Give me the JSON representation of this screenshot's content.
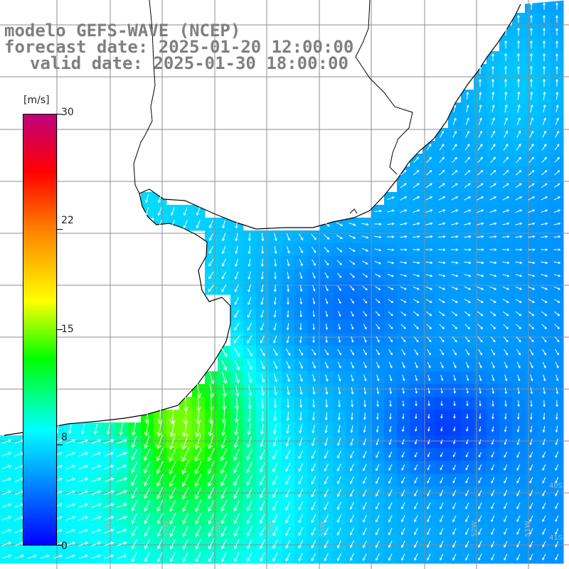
{
  "title": {
    "line1": "modelo GEFS-WAVE (NCEP)",
    "line2": "forecast date: 2025-01-20 12:00:00",
    "line3": "valid date: 2025-01-30 18:00:00"
  },
  "colorbar": {
    "unit": "[m/s]",
    "min": 0,
    "max": 30,
    "tick_labels": [
      "30",
      "22",
      "15",
      "8",
      "0"
    ],
    "tick_values": [
      30,
      22,
      15,
      8,
      0
    ],
    "colormap_stops": [
      {
        "value": 0,
        "color": "#0000ff"
      },
      {
        "value": 8,
        "color": "#00ffff"
      },
      {
        "value": 13,
        "color": "#00ff00"
      },
      {
        "value": 17,
        "color": "#ffff00"
      },
      {
        "value": 22,
        "color": "#ff8000"
      },
      {
        "value": 26,
        "color": "#ff0000"
      },
      {
        "value": 30,
        "color": "#c0007f"
      }
    ]
  },
  "map": {
    "field": "wind speed",
    "lon_labels": [
      "59W",
      "57W",
      "56W",
      "55W",
      "53W",
      "52W",
      "51W"
    ],
    "lat_labels": [
      "40S",
      "41S"
    ],
    "colors": {
      "land": "#ffffff",
      "grid": "#8c8c8c",
      "coast": "#000000",
      "arrow": "#ffffff",
      "label": "#b4b4b4"
    }
  }
}
